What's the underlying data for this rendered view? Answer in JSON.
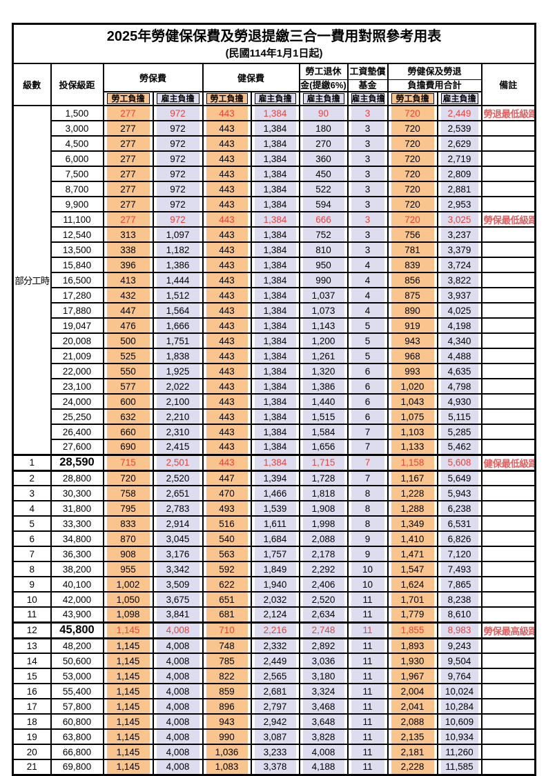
{
  "title": "2025年勞健保保費及勞退提繳三合一費用對照參考用表",
  "subtitle": "(民國114年1月1日起)",
  "colors": {
    "employee_fill": "#F9C48E",
    "employer_fill": "#DEDCEF",
    "highlight_text": "#E8433C",
    "note_text": "#E06060",
    "grid": "#000000"
  },
  "columns": {
    "level": "級數",
    "bracket": "投保級距",
    "labor_fee": "勞保費",
    "health_fee": "健保費",
    "pension_line1": "勞工退休",
    "pension_line2": "金(提繳6%)",
    "wage_fund_line1": "工資墊償",
    "wage_fund_line2": "基金",
    "total_line1": "勞健保及勞退",
    "total_line2": "負擔費用合計",
    "note": "備註",
    "employee_share": "勞工負擔",
    "employer_share": "雇主負擔"
  },
  "part_time_label": "部分工時",
  "part_time_rowspan": 23,
  "table": {
    "rows": [
      {
        "level": "",
        "bracket": "1,500",
        "values": [
          "277",
          "972",
          "443",
          "1,384",
          "90",
          "3",
          "720",
          "2,449"
        ],
        "note": "勞退最低級距",
        "red": true,
        "bold": false,
        "thick": false
      },
      {
        "level": "",
        "bracket": "3,000",
        "values": [
          "277",
          "972",
          "443",
          "1,384",
          "180",
          "3",
          "720",
          "2,539"
        ],
        "note": "",
        "red": false,
        "bold": false,
        "thick": false
      },
      {
        "level": "",
        "bracket": "4,500",
        "values": [
          "277",
          "972",
          "443",
          "1,384",
          "270",
          "3",
          "720",
          "2,629"
        ],
        "note": "",
        "red": false,
        "bold": false,
        "thick": false
      },
      {
        "level": "",
        "bracket": "6,000",
        "values": [
          "277",
          "972",
          "443",
          "1,384",
          "360",
          "3",
          "720",
          "2,719"
        ],
        "note": "",
        "red": false,
        "bold": false,
        "thick": false
      },
      {
        "level": "",
        "bracket": "7,500",
        "values": [
          "277",
          "972",
          "443",
          "1,384",
          "450",
          "3",
          "720",
          "2,809"
        ],
        "note": "",
        "red": false,
        "bold": false,
        "thick": false
      },
      {
        "level": "",
        "bracket": "8,700",
        "values": [
          "277",
          "972",
          "443",
          "1,384",
          "522",
          "3",
          "720",
          "2,881"
        ],
        "note": "",
        "red": false,
        "bold": false,
        "thick": false
      },
      {
        "level": "",
        "bracket": "9,900",
        "values": [
          "277",
          "972",
          "443",
          "1,384",
          "594",
          "3",
          "720",
          "2,953"
        ],
        "note": "",
        "red": false,
        "bold": false,
        "thick": false
      },
      {
        "level": "",
        "bracket": "11,100",
        "values": [
          "277",
          "972",
          "443",
          "1,384",
          "666",
          "3",
          "720",
          "3,025"
        ],
        "note": "勞保最低級距",
        "red": true,
        "bold": false,
        "thick": false
      },
      {
        "level": "",
        "bracket": "12,540",
        "values": [
          "313",
          "1,097",
          "443",
          "1,384",
          "752",
          "3",
          "756",
          "3,237"
        ],
        "note": "",
        "red": false,
        "bold": false,
        "thick": false
      },
      {
        "level": "",
        "bracket": "13,500",
        "values": [
          "338",
          "1,182",
          "443",
          "1,384",
          "810",
          "3",
          "781",
          "3,379"
        ],
        "note": "",
        "red": false,
        "bold": false,
        "thick": false
      },
      {
        "level": "",
        "bracket": "15,840",
        "values": [
          "396",
          "1,386",
          "443",
          "1,384",
          "950",
          "4",
          "839",
          "3,724"
        ],
        "note": "",
        "red": false,
        "bold": false,
        "thick": false
      },
      {
        "level": "",
        "bracket": "16,500",
        "values": [
          "413",
          "1,444",
          "443",
          "1,384",
          "990",
          "4",
          "856",
          "3,822"
        ],
        "note": "",
        "red": false,
        "bold": false,
        "thick": false
      },
      {
        "level": "",
        "bracket": "17,280",
        "values": [
          "432",
          "1,512",
          "443",
          "1,384",
          "1,037",
          "4",
          "875",
          "3,937"
        ],
        "note": "",
        "red": false,
        "bold": false,
        "thick": false
      },
      {
        "level": "",
        "bracket": "17,880",
        "values": [
          "447",
          "1,564",
          "443",
          "1,384",
          "1,073",
          "4",
          "890",
          "4,025"
        ],
        "note": "",
        "red": false,
        "bold": false,
        "thick": false
      },
      {
        "level": "",
        "bracket": "19,047",
        "values": [
          "476",
          "1,666",
          "443",
          "1,384",
          "1,143",
          "5",
          "919",
          "4,198"
        ],
        "note": "",
        "red": false,
        "bold": false,
        "thick": false
      },
      {
        "level": "",
        "bracket": "20,008",
        "values": [
          "500",
          "1,751",
          "443",
          "1,384",
          "1,200",
          "5",
          "943",
          "4,340"
        ],
        "note": "",
        "red": false,
        "bold": false,
        "thick": false
      },
      {
        "level": "",
        "bracket": "21,009",
        "values": [
          "525",
          "1,838",
          "443",
          "1,384",
          "1,261",
          "5",
          "968",
          "4,488"
        ],
        "note": "",
        "red": false,
        "bold": false,
        "thick": false
      },
      {
        "level": "",
        "bracket": "22,000",
        "values": [
          "550",
          "1,925",
          "443",
          "1,384",
          "1,320",
          "6",
          "993",
          "4,635"
        ],
        "note": "",
        "red": false,
        "bold": false,
        "thick": false
      },
      {
        "level": "",
        "bracket": "23,100",
        "values": [
          "577",
          "2,022",
          "443",
          "1,384",
          "1,386",
          "6",
          "1,020",
          "4,798"
        ],
        "note": "",
        "red": false,
        "bold": false,
        "thick": false
      },
      {
        "level": "",
        "bracket": "24,000",
        "values": [
          "600",
          "2,100",
          "443",
          "1,384",
          "1,440",
          "6",
          "1,043",
          "4,930"
        ],
        "note": "",
        "red": false,
        "bold": false,
        "thick": false
      },
      {
        "level": "",
        "bracket": "25,250",
        "values": [
          "632",
          "2,210",
          "443",
          "1,384",
          "1,515",
          "6",
          "1,075",
          "5,115"
        ],
        "note": "",
        "red": false,
        "bold": false,
        "thick": false
      },
      {
        "level": "",
        "bracket": "26,400",
        "values": [
          "660",
          "2,310",
          "443",
          "1,384",
          "1,584",
          "7",
          "1,103",
          "5,285"
        ],
        "note": "",
        "red": false,
        "bold": false,
        "thick": false
      },
      {
        "level": "",
        "bracket": "27,600",
        "values": [
          "690",
          "2,415",
          "443",
          "1,384",
          "1,656",
          "7",
          "1,133",
          "5,462"
        ],
        "note": "",
        "red": false,
        "bold": false,
        "thick": false
      },
      {
        "level": "1",
        "bracket": "28,590",
        "values": [
          "715",
          "2,501",
          "443",
          "1,384",
          "1,715",
          "7",
          "1,158",
          "5,608"
        ],
        "note": "健保最低級距",
        "red": true,
        "bold": true,
        "thick": true
      },
      {
        "level": "2",
        "bracket": "28,800",
        "values": [
          "720",
          "2,520",
          "447",
          "1,394",
          "1,728",
          "7",
          "1,167",
          "5,649"
        ],
        "note": "",
        "red": false,
        "bold": false,
        "thick": false
      },
      {
        "level": "3",
        "bracket": "30,300",
        "values": [
          "758",
          "2,651",
          "470",
          "1,466",
          "1,818",
          "8",
          "1,228",
          "5,943"
        ],
        "note": "",
        "red": false,
        "bold": false,
        "thick": false
      },
      {
        "level": "4",
        "bracket": "31,800",
        "values": [
          "795",
          "2,783",
          "493",
          "1,539",
          "1,908",
          "8",
          "1,288",
          "6,238"
        ],
        "note": "",
        "red": false,
        "bold": false,
        "thick": false
      },
      {
        "level": "5",
        "bracket": "33,300",
        "values": [
          "833",
          "2,914",
          "516",
          "1,611",
          "1,998",
          "8",
          "1,349",
          "6,531"
        ],
        "note": "",
        "red": false,
        "bold": false,
        "thick": false
      },
      {
        "level": "6",
        "bracket": "34,800",
        "values": [
          "870",
          "3,045",
          "540",
          "1,684",
          "2,088",
          "9",
          "1,410",
          "6,826"
        ],
        "note": "",
        "red": false,
        "bold": false,
        "thick": false
      },
      {
        "level": "7",
        "bracket": "36,300",
        "values": [
          "908",
          "3,176",
          "563",
          "1,757",
          "2,178",
          "9",
          "1,471",
          "7,120"
        ],
        "note": "",
        "red": false,
        "bold": false,
        "thick": false
      },
      {
        "level": "8",
        "bracket": "38,200",
        "values": [
          "955",
          "3,342",
          "592",
          "1,849",
          "2,292",
          "10",
          "1,547",
          "7,493"
        ],
        "note": "",
        "red": false,
        "bold": false,
        "thick": false
      },
      {
        "level": "9",
        "bracket": "40,100",
        "values": [
          "1,002",
          "3,509",
          "622",
          "1,940",
          "2,406",
          "10",
          "1,624",
          "7,865"
        ],
        "note": "",
        "red": false,
        "bold": false,
        "thick": false
      },
      {
        "level": "10",
        "bracket": "42,000",
        "values": [
          "1,050",
          "3,675",
          "651",
          "2,032",
          "2,520",
          "11",
          "1,701",
          "8,238"
        ],
        "note": "",
        "red": false,
        "bold": false,
        "thick": false
      },
      {
        "level": "11",
        "bracket": "43,900",
        "values": [
          "1,098",
          "3,841",
          "681",
          "2,124",
          "2,634",
          "11",
          "1,779",
          "8,610"
        ],
        "note": "",
        "red": false,
        "bold": false,
        "thick": false
      },
      {
        "level": "12",
        "bracket": "45,800",
        "values": [
          "1,145",
          "4,008",
          "710",
          "2,216",
          "2,748",
          "11",
          "1,855",
          "8,983"
        ],
        "note": "勞保最高級距",
        "red": true,
        "bold": true,
        "thick": true
      },
      {
        "level": "13",
        "bracket": "48,200",
        "values": [
          "1,145",
          "4,008",
          "748",
          "2,332",
          "2,892",
          "11",
          "1,893",
          "9,243"
        ],
        "note": "",
        "red": false,
        "bold": false,
        "thick": false
      },
      {
        "level": "14",
        "bracket": "50,600",
        "values": [
          "1,145",
          "4,008",
          "785",
          "2,449",
          "3,036",
          "11",
          "1,930",
          "9,504"
        ],
        "note": "",
        "red": false,
        "bold": false,
        "thick": false
      },
      {
        "level": "15",
        "bracket": "53,000",
        "values": [
          "1,145",
          "4,008",
          "822",
          "2,565",
          "3,180",
          "11",
          "1,967",
          "9,764"
        ],
        "note": "",
        "red": false,
        "bold": false,
        "thick": false
      },
      {
        "level": "16",
        "bracket": "55,400",
        "values": [
          "1,145",
          "4,008",
          "859",
          "2,681",
          "3,324",
          "11",
          "2,004",
          "10,024"
        ],
        "note": "",
        "red": false,
        "bold": false,
        "thick": false
      },
      {
        "level": "17",
        "bracket": "57,800",
        "values": [
          "1,145",
          "4,008",
          "896",
          "2,797",
          "3,468",
          "11",
          "2,041",
          "10,284"
        ],
        "note": "",
        "red": false,
        "bold": false,
        "thick": false
      },
      {
        "level": "18",
        "bracket": "60,800",
        "values": [
          "1,145",
          "4,008",
          "943",
          "2,942",
          "3,648",
          "11",
          "2,088",
          "10,609"
        ],
        "note": "",
        "red": false,
        "bold": false,
        "thick": false
      },
      {
        "level": "19",
        "bracket": "63,800",
        "values": [
          "1,145",
          "4,008",
          "990",
          "3,087",
          "3,828",
          "11",
          "2,135",
          "10,934"
        ],
        "note": "",
        "red": false,
        "bold": false,
        "thick": false
      },
      {
        "level": "20",
        "bracket": "66,800",
        "values": [
          "1,145",
          "4,008",
          "1,036",
          "3,233",
          "4,008",
          "11",
          "2,181",
          "11,260"
        ],
        "note": "",
        "red": false,
        "bold": false,
        "thick": false
      },
      {
        "level": "21",
        "bracket": "69,800",
        "values": [
          "1,145",
          "4,008",
          "1,083",
          "3,378",
          "4,188",
          "11",
          "2,228",
          "11,585"
        ],
        "note": "",
        "red": false,
        "bold": false,
        "thick": false
      }
    ]
  }
}
